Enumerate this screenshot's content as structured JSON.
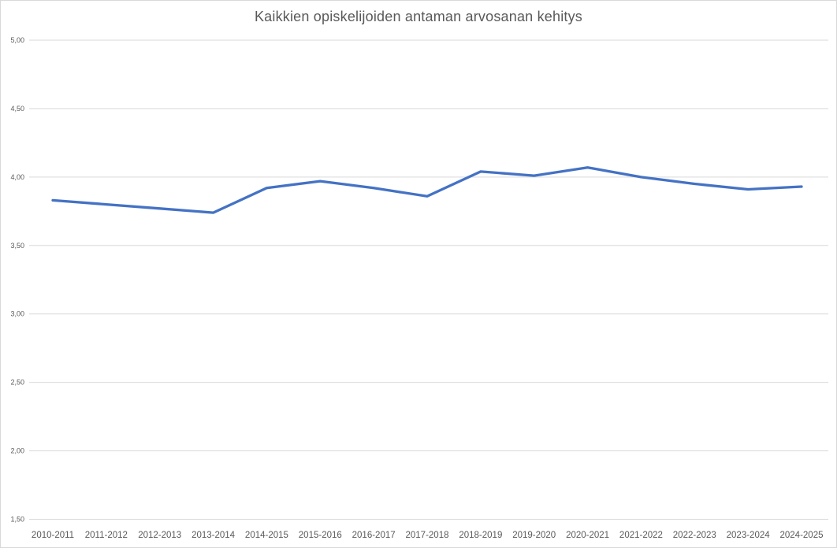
{
  "chart_data": {
    "type": "line",
    "title": "Kaikkien opiskelijoiden antaman arvosanan kehitys",
    "xlabel": "",
    "ylabel": "",
    "categories": [
      "2010-2011",
      "2011-2012",
      "2012-2013",
      "2013-2014",
      "2014-2015",
      "2015-2016",
      "2016-2017",
      "2017-2018",
      "2018-2019",
      "2019-2020",
      "2020-2021",
      "2021-2022",
      "2022-2023",
      "2023-2024",
      "2024-2025"
    ],
    "values": [
      3.83,
      3.8,
      3.77,
      3.74,
      3.92,
      3.97,
      3.92,
      3.86,
      4.04,
      4.01,
      4.07,
      4.0,
      3.95,
      3.91,
      3.93
    ],
    "ylim": [
      1.5,
      5.0
    ],
    "ytick_step": 0.5,
    "yticks": [
      {
        "value": 5.0,
        "label": "5,00"
      },
      {
        "value": 4.5,
        "label": "4,50"
      },
      {
        "value": 4.0,
        "label": "4,00"
      },
      {
        "value": 3.5,
        "label": "3,50"
      },
      {
        "value": 3.0,
        "label": "3,00"
      },
      {
        "value": 2.5,
        "label": "2,50"
      },
      {
        "value": 2.0,
        "label": "2,00"
      },
      {
        "value": 1.5,
        "label": "1,50"
      }
    ],
    "grid": true,
    "legend": "none",
    "colors": {
      "line": "#4472C4",
      "gridline": "#D9D9D9",
      "axis_text": "#595959",
      "title_text": "#595959",
      "border": "#D9D9D9",
      "background": "#FFFFFF"
    }
  }
}
